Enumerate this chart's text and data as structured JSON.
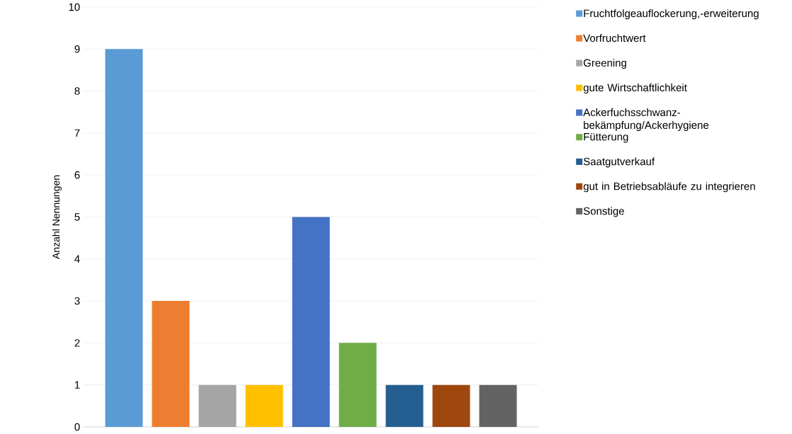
{
  "chart_data": {
    "type": "bar",
    "ylabel": "Anzahl Nennungen",
    "categories": [
      null
    ],
    "series": [
      {
        "name": "Fruchtfolgeauflockerung,-erweiterung",
        "color": "#5b9bd5",
        "values": [
          9
        ]
      },
      {
        "name": "Vorfruchtwert",
        "color": "#ed7d31",
        "values": [
          3
        ]
      },
      {
        "name": "Greening",
        "color": "#a5a5a5",
        "values": [
          1
        ]
      },
      {
        "name": "gute Wirtschaftlichkeit",
        "color": "#ffc000",
        "values": [
          1
        ]
      },
      {
        "name": "Ackerfuchsschwanz-bekämpfung/Ackerhygiene",
        "color": "#4472c4",
        "values": [
          5
        ]
      },
      {
        "name": "Fütterung",
        "color": "#70ad47",
        "values": [
          2
        ]
      },
      {
        "name": "Saatgutverkauf",
        "color": "#255e91",
        "values": [
          1
        ]
      },
      {
        "name": "gut in Betriebsabläufe zu integrieren",
        "color": "#9e480e",
        "values": [
          1
        ]
      },
      {
        "name": "Sonstige",
        "color": "#636363",
        "values": [
          1
        ]
      }
    ],
    "ylim": [
      0,
      10
    ],
    "yticks": [
      0,
      1,
      2,
      3,
      4,
      5,
      6,
      7,
      8,
      9,
      10
    ],
    "grid": "y",
    "legend": "right"
  }
}
